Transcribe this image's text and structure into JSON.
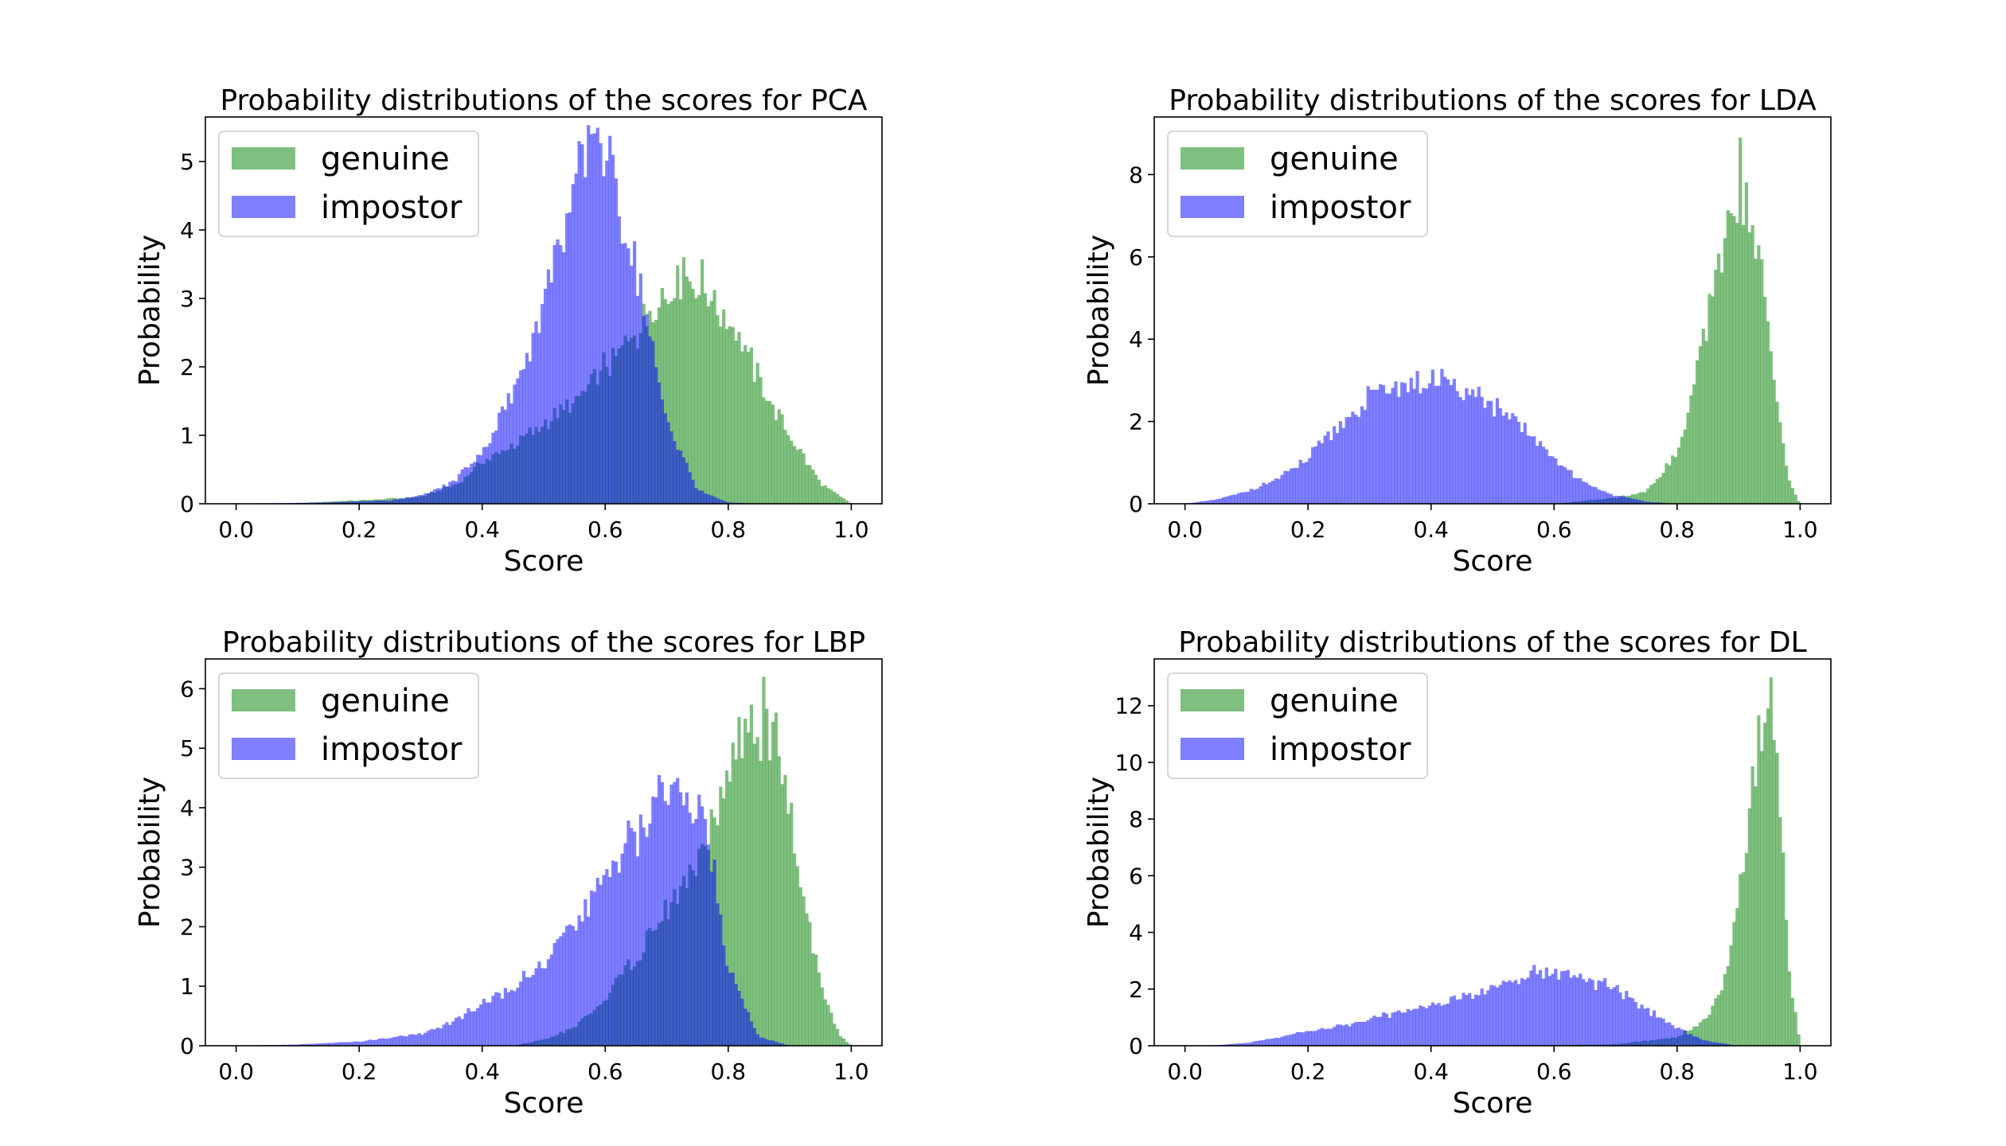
{
  "chart_data": [
    {
      "type": "bar",
      "histogram": true,
      "title": "Probability distributions of the scores for PCA",
      "xlabel": "Score",
      "ylabel": "Probability",
      "xlim": [
        -0.05,
        1.05
      ],
      "ylim": [
        0,
        5.65
      ],
      "xticks": [
        0.0,
        0.2,
        0.4,
        0.6,
        0.8,
        1.0
      ],
      "yticks": [
        0,
        1,
        2,
        3,
        4,
        5
      ],
      "grid": false,
      "legend": "upper left",
      "bins": {
        "start": 0.0,
        "end": 1.0,
        "count": 200
      },
      "series": [
        {
          "name": "genuine",
          "color": "#008000",
          "alpha": 0.5,
          "profile": {
            "x": [
              0.08,
              0.2,
              0.3,
              0.36,
              0.4,
              0.45,
              0.5,
              0.55,
              0.6,
              0.65,
              0.7,
              0.75,
              0.8,
              0.85,
              0.9,
              0.95,
              1.0
            ],
            "y": [
              0.0,
              0.05,
              0.1,
              0.3,
              0.6,
              0.85,
              1.15,
              1.5,
              2.0,
              2.5,
              3.15,
              3.3,
              2.7,
              1.8,
              1.0,
              0.3,
              0.0
            ]
          },
          "peak": {
            "x": 0.73,
            "y": 3.6
          }
        },
        {
          "name": "impostor",
          "color": "#0000ff",
          "alpha": 0.5,
          "profile": {
            "x": [
              0.0,
              0.15,
              0.25,
              0.3,
              0.35,
              0.4,
              0.45,
              0.5,
              0.55,
              0.58,
              0.6,
              0.65,
              0.7,
              0.75,
              0.8,
              0.85
            ],
            "y": [
              0.0,
              0.02,
              0.05,
              0.12,
              0.3,
              0.75,
              1.6,
              3.0,
              4.6,
              5.35,
              5.0,
              3.5,
              1.2,
              0.2,
              0.02,
              0.0
            ]
          },
          "peak": {
            "x": 0.58,
            "y": 5.4
          }
        }
      ]
    },
    {
      "type": "bar",
      "histogram": true,
      "title": "Probability distributions of the scores for LDA",
      "xlabel": "Score",
      "ylabel": "Probability",
      "xlim": [
        -0.05,
        1.05
      ],
      "ylim": [
        0,
        9.4
      ],
      "xticks": [
        0.0,
        0.2,
        0.4,
        0.6,
        0.8,
        1.0
      ],
      "yticks": [
        0,
        2,
        4,
        6,
        8
      ],
      "grid": false,
      "legend": "upper left",
      "bins": {
        "start": 0.0,
        "end": 1.0,
        "count": 200
      },
      "series": [
        {
          "name": "genuine",
          "color": "#008000",
          "alpha": 0.5,
          "profile": {
            "x": [
              0.6,
              0.7,
              0.75,
              0.8,
              0.83,
              0.86,
              0.88,
              0.9,
              0.92,
              0.94,
              0.96,
              0.98,
              1.0
            ],
            "y": [
              0.0,
              0.15,
              0.3,
              1.2,
              3.0,
              5.2,
              6.8,
              7.3,
              7.0,
              5.5,
              2.8,
              0.6,
              0.0
            ]
          },
          "peak": {
            "x": 0.9,
            "y": 8.9
          }
        },
        {
          "name": "impostor",
          "color": "#0000ff",
          "alpha": 0.5,
          "profile": {
            "x": [
              0.0,
              0.05,
              0.1,
              0.15,
              0.2,
              0.25,
              0.3,
              0.35,
              0.4,
              0.45,
              0.5,
              0.55,
              0.6,
              0.65,
              0.7,
              0.75,
              0.8
            ],
            "y": [
              0.0,
              0.1,
              0.3,
              0.6,
              1.1,
              1.9,
              2.6,
              2.9,
              3.0,
              2.8,
              2.4,
              1.8,
              1.1,
              0.5,
              0.2,
              0.05,
              0.0
            ]
          },
          "peak": {
            "x": 0.4,
            "y": 3.1
          }
        }
      ]
    },
    {
      "type": "bar",
      "histogram": true,
      "title": "Probability distributions of the scores for LBP",
      "xlabel": "Score",
      "ylabel": "Probability",
      "xlim": [
        -0.05,
        1.05
      ],
      "ylim": [
        0,
        6.5
      ],
      "xticks": [
        0.0,
        0.2,
        0.4,
        0.6,
        0.8,
        1.0
      ],
      "yticks": [
        0,
        1,
        2,
        3,
        4,
        5,
        6
      ],
      "grid": false,
      "legend": "upper left",
      "bins": {
        "start": 0.0,
        "end": 1.0,
        "count": 200
      },
      "series": [
        {
          "name": "genuine",
          "color": "#008000",
          "alpha": 0.5,
          "profile": {
            "x": [
              0.45,
              0.5,
              0.55,
              0.6,
              0.65,
              0.7,
              0.75,
              0.78,
              0.8,
              0.83,
              0.86,
              0.88,
              0.9,
              0.92,
              0.95,
              0.98,
              1.0
            ],
            "y": [
              0.0,
              0.1,
              0.3,
              0.8,
              1.5,
              2.3,
              3.0,
              3.8,
              4.6,
              5.3,
              5.4,
              5.0,
              4.0,
              2.7,
              1.0,
              0.2,
              0.0
            ]
          },
          "peak": {
            "x": 0.86,
            "y": 6.2
          }
        },
        {
          "name": "impostor",
          "color": "#0000ff",
          "alpha": 0.5,
          "profile": {
            "x": [
              0.0,
              0.1,
              0.2,
              0.3,
              0.35,
              0.4,
              0.45,
              0.5,
              0.55,
              0.6,
              0.65,
              0.7,
              0.73,
              0.75,
              0.78,
              0.8,
              0.85,
              0.9
            ],
            "y": [
              0.0,
              0.02,
              0.07,
              0.2,
              0.4,
              0.7,
              1.0,
              1.4,
              2.0,
              2.8,
              3.6,
              4.3,
              4.5,
              4.1,
              2.8,
              1.3,
              0.15,
              0.0
            ]
          },
          "peak": {
            "x": 0.72,
            "y": 4.5
          }
        }
      ]
    },
    {
      "type": "bar",
      "histogram": true,
      "title": "Probability distributions of the scores for DL",
      "xlabel": "Score",
      "ylabel": "Probability",
      "xlim": [
        -0.05,
        1.05
      ],
      "ylim": [
        0,
        13.65
      ],
      "xticks": [
        0.0,
        0.2,
        0.4,
        0.6,
        0.8,
        1.0
      ],
      "yticks": [
        0,
        2,
        4,
        6,
        8,
        10,
        12
      ],
      "grid": false,
      "legend": "upper left",
      "bins": {
        "start": 0.0,
        "end": 1.0,
        "count": 200
      },
      "series": [
        {
          "name": "genuine",
          "color": "#008000",
          "alpha": 0.5,
          "profile": {
            "x": [
              0.5,
              0.7,
              0.8,
              0.85,
              0.88,
              0.9,
              0.92,
              0.94,
              0.95,
              0.96,
              0.97,
              0.98,
              1.0
            ],
            "y": [
              0.0,
              0.05,
              0.3,
              1.0,
              2.5,
              5.0,
              8.5,
              11.5,
              12.3,
              11.0,
              7.5,
              3.0,
              0.0
            ]
          },
          "peak": {
            "x": 0.955,
            "y": 13.0
          }
        },
        {
          "name": "impostor",
          "color": "#0000ff",
          "alpha": 0.5,
          "profile": {
            "x": [
              0.0,
              0.05,
              0.1,
              0.15,
              0.2,
              0.25,
              0.3,
              0.35,
              0.4,
              0.45,
              0.5,
              0.55,
              0.6,
              0.65,
              0.7,
              0.75,
              0.8,
              0.85,
              0.9
            ],
            "y": [
              0.0,
              0.02,
              0.1,
              0.3,
              0.5,
              0.7,
              0.9,
              1.25,
              1.4,
              1.7,
              2.0,
              2.5,
              2.6,
              2.35,
              2.0,
              1.3,
              0.6,
              0.15,
              0.0
            ]
          },
          "peak": {
            "x": 0.57,
            "y": 2.85
          }
        }
      ]
    }
  ]
}
